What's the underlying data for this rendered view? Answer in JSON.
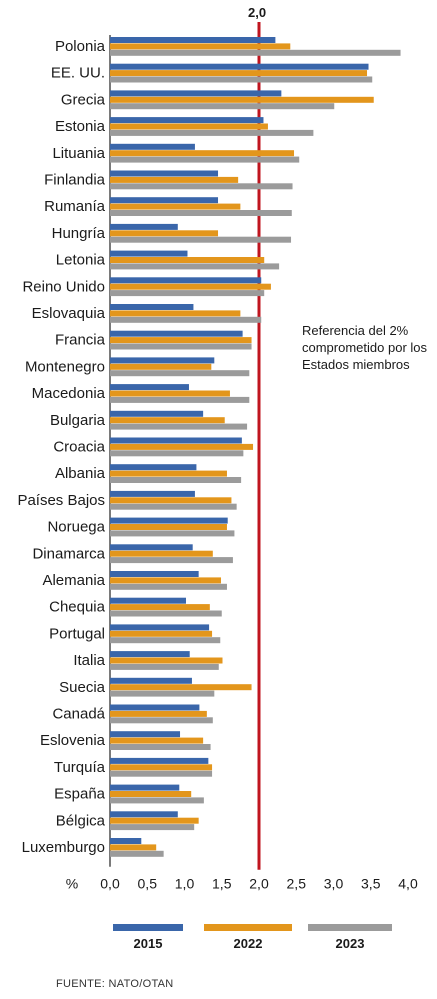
{
  "chart_data": {
    "type": "bar",
    "orientation": "horizontal",
    "categories": [
      "Polonia",
      "EE. UU.",
      "Grecia",
      "Estonia",
      "Lituania",
      "Finlandia",
      "Rumanía",
      "Hungría",
      "Letonia",
      "Reino Unido",
      "Eslovaquia",
      "Francia",
      "Montenegro",
      "Macedonia",
      "Bulgaria",
      "Croacia",
      "Albania",
      "Países Bajos",
      "Noruega",
      "Dinamarca",
      "Alemania",
      "Chequia",
      "Portugal",
      "Italia",
      "Suecia",
      "Canadá",
      "Eslovenia",
      "Turquía",
      "España",
      "Bélgica",
      "Luxemburgo"
    ],
    "series": [
      {
        "name": "2015",
        "color": "#3a66aa",
        "values": [
          2.22,
          3.47,
          2.3,
          2.06,
          1.14,
          1.45,
          1.45,
          0.91,
          1.04,
          2.03,
          1.12,
          1.78,
          1.4,
          1.06,
          1.25,
          1.77,
          1.16,
          1.14,
          1.58,
          1.11,
          1.19,
          1.02,
          1.33,
          1.07,
          1.1,
          1.2,
          0.94,
          1.32,
          0.93,
          0.91,
          0.42
        ]
      },
      {
        "name": "2022",
        "color": "#e3961c",
        "values": [
          2.42,
          3.45,
          3.54,
          2.12,
          2.47,
          1.72,
          1.75,
          1.45,
          2.07,
          2.16,
          1.75,
          1.9,
          1.36,
          1.61,
          1.54,
          1.92,
          1.57,
          1.63,
          1.57,
          1.38,
          1.49,
          1.34,
          1.37,
          1.51,
          1.9,
          1.3,
          1.25,
          1.37,
          1.09,
          1.19,
          0.62
        ]
      },
      {
        "name": "2023",
        "color": "#9b9b9b",
        "values": [
          3.9,
          3.52,
          3.01,
          2.73,
          2.54,
          2.45,
          2.44,
          2.43,
          2.27,
          2.07,
          2.03,
          1.9,
          1.87,
          1.87,
          1.84,
          1.79,
          1.76,
          1.7,
          1.67,
          1.65,
          1.57,
          1.5,
          1.48,
          1.46,
          1.4,
          1.38,
          1.35,
          1.37,
          1.26,
          1.13,
          0.72
        ]
      }
    ],
    "x_unit_label": "%",
    "xticks": [
      "0,0",
      "0,5",
      "1,0",
      "1,5",
      "2,0",
      "2,5",
      "3,0",
      "3,5",
      "4,0"
    ],
    "xlim": [
      0,
      4
    ],
    "reference_line": {
      "value": 2.0,
      "label": "2,0",
      "color": "#c0151f",
      "note": "Referencia del 2% comprometido por los Estados miembros"
    },
    "legend_position": "bottom"
  },
  "source": "FUENTE: NATO/OTAN"
}
